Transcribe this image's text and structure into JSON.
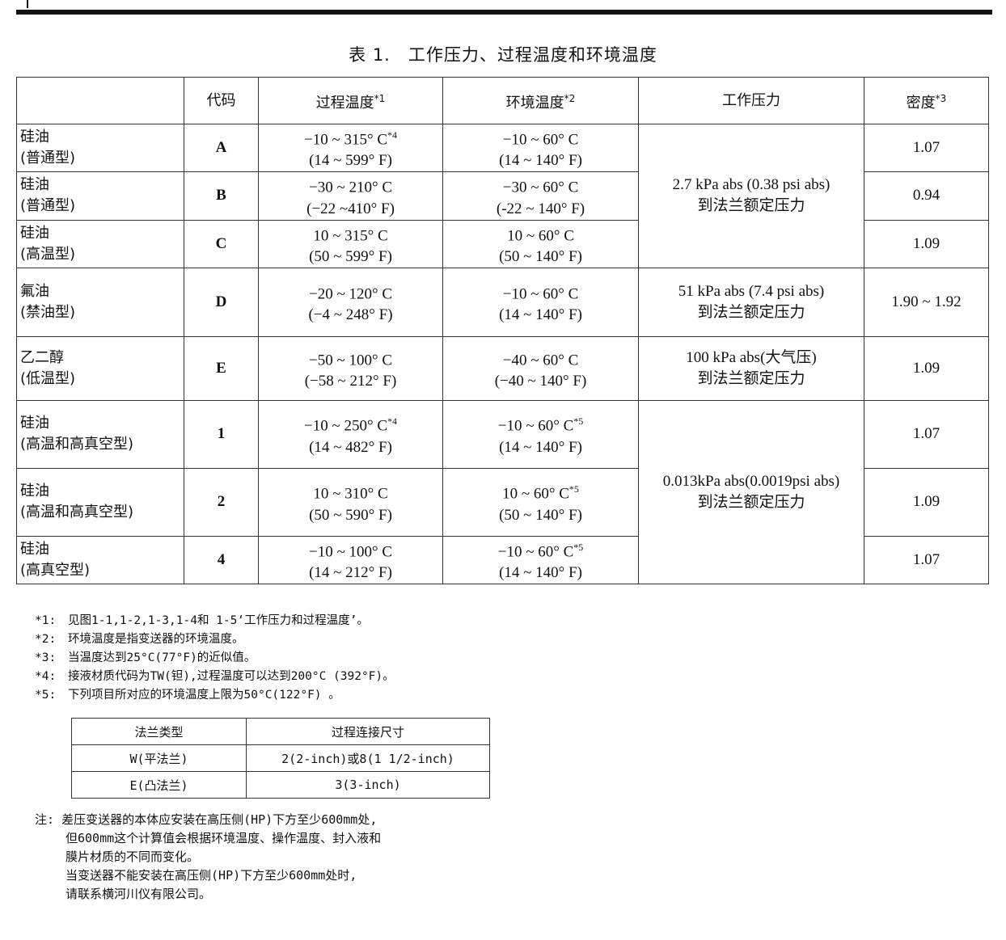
{
  "title": "表 1.　工作压力、过程温度和环境温度",
  "headers": {
    "material": "",
    "code": "代码",
    "process_temp": "过程温度",
    "process_temp_note": "*1",
    "ambient_temp": "环境温度",
    "ambient_temp_note": "*2",
    "pressure": "工作压力",
    "density": "密度",
    "density_note": "*3"
  },
  "rows": [
    {
      "mat1": "硅油",
      "mat2": "(普通型)",
      "code": "A",
      "pt1": "−10 ~ 315° C",
      "pt1_note": "*4",
      "pt2": "(14 ~ 599° F)",
      "at1": "−10 ~ 60° C",
      "at1_note": "",
      "at2": "(14 ~ 140° F)",
      "density": "1.07"
    },
    {
      "mat1": "硅油",
      "mat2": "(普通型)",
      "code": "B",
      "pt1": "−30 ~ 210° C",
      "pt1_note": "",
      "pt2": "(−22 ~410° F)",
      "at1": "−30 ~ 60° C",
      "at1_note": "",
      "at2": "(-22 ~ 140° F)",
      "density": "0.94"
    },
    {
      "mat1": "硅油",
      "mat2": "(高温型)",
      "code": "C",
      "pt1": "10 ~ 315° C",
      "pt1_note": "",
      "pt2": "(50 ~ 599° F)",
      "at1": "10 ~ 60° C",
      "at1_note": "",
      "at2": "(50 ~ 140° F)",
      "density": "1.09"
    },
    {
      "mat1": "氟油",
      "mat2": "(禁油型)",
      "code": "D",
      "pt1": "−20 ~ 120° C",
      "pt1_note": "",
      "pt2": "(−4 ~ 248° F)",
      "at1": "−10 ~ 60° C",
      "at1_note": "",
      "at2": "(14 ~ 140° F)",
      "density": "1.90 ~ 1.92"
    },
    {
      "mat1": "乙二醇",
      "mat2": "(低温型)",
      "code": "E",
      "pt1": "−50 ~ 100° C",
      "pt1_note": "",
      "pt2": "(−58 ~ 212° F)",
      "at1": "−40 ~ 60° C",
      "at1_note": "",
      "at2": "(−40 ~ 140° F)",
      "density": "1.09"
    },
    {
      "mat1": "硅油",
      "mat2": "(高温和高真空型)",
      "code": "1",
      "pt1": "−10 ~ 250° C",
      "pt1_note": "*4",
      "pt2": "(14 ~ 482° F)",
      "at1": "−10 ~ 60° C",
      "at1_note": "*5",
      "at2": "(14 ~ 140° F)",
      "density": "1.07"
    },
    {
      "mat1": "硅油",
      "mat2": "(高温和高真空型)",
      "code": "2",
      "pt1": "10 ~ 310° C",
      "pt1_note": "",
      "pt2": "(50 ~ 590° F)",
      "at1": "10 ~ 60° C",
      "at1_note": "*5",
      "at2": "(50 ~ 140° F)",
      "density": "1.09"
    },
    {
      "mat1": "硅油",
      "mat2": "(高真空型)",
      "code": "4",
      "pt1": "−10 ~ 100° C",
      "pt1_note": "",
      "pt2": "(14 ~ 212° F)",
      "at1": "−10 ~ 60° C",
      "at1_note": "*5",
      "at2": "(14 ~ 140° F)",
      "density": "1.07"
    }
  ],
  "pressures": [
    {
      "l1": "2.7 kPa abs (0.38 psi abs)",
      "l2": "到法兰额定压力"
    },
    {
      "l1": "51 kPa abs (7.4 psi abs)",
      "l2": "到法兰额定压力"
    },
    {
      "l1": "100 kPa abs(大气压)",
      "l2": "到法兰额定压力"
    },
    {
      "l1": "0.013kPa abs(0.0019psi abs)",
      "l2": "到法兰额定压力"
    }
  ],
  "notes": [
    {
      "k": "*1:",
      "t": "见图1-1,1-2,1-3,1-4和 1-5‘工作压力和过程温度’。"
    },
    {
      "k": "*2:",
      "t": "环境温度是指变送器的环境温度。"
    },
    {
      "k": "*3:",
      "t": "当温度达到25°C(77°F)的近似值。"
    },
    {
      "k": "*4:",
      "t": "接液材质代码为TW(钽),过程温度可以达到200°C (392°F)。"
    },
    {
      "k": "*5:",
      "t": "下列项目所对应的环境温度上限为50°C(122°F) 。"
    }
  ],
  "flange": {
    "h1": "法兰类型",
    "h2": "过程连接尺寸",
    "rows": [
      [
        "W(平法兰)",
        "2(2-inch)或8(1 1/2-inch)"
      ],
      [
        "E(凸法兰)",
        "3(3-inch)"
      ]
    ]
  },
  "remark": {
    "k": "注:",
    "lines": [
      "差压变送器的本体应安装在高压侧(HP)下方至少600mm处,",
      "但600mm这个计算值会根据环境温度、操作温度、封入液和",
      "膜片材质的不同而变化。",
      "当变送器不能安装在高压侧(HP)下方至少600mm处时,",
      "请联系横河川仪有限公司。"
    ]
  }
}
